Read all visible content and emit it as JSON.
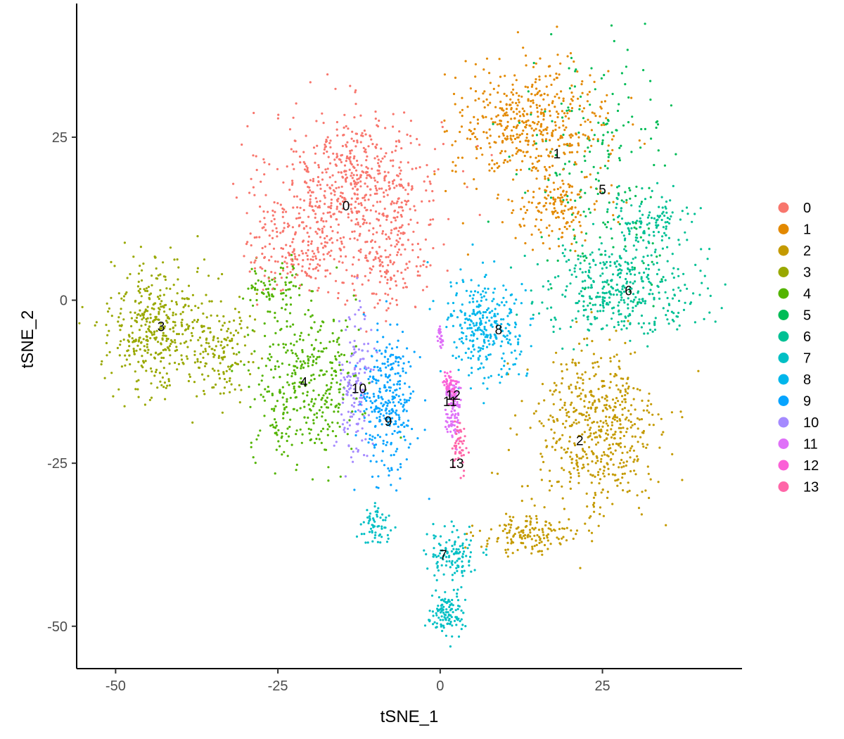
{
  "chart_data": {
    "type": "scatter",
    "xlabel": "tSNE_1",
    "ylabel": "tSNE_2",
    "xlim": [
      -56,
      46.5
    ],
    "ylim": [
      -56.5,
      45.5
    ],
    "x_ticks": [
      -50,
      -25,
      0,
      25
    ],
    "y_ticks": [
      -50,
      -25,
      0,
      25
    ],
    "grid": false,
    "legend_position": "right",
    "series": [
      {
        "name": "0",
        "color": "#F8766D",
        "blobs": [
          {
            "cx": -13,
            "cy": 18,
            "rx": 13,
            "ry": 11,
            "n": 600
          },
          {
            "cx": -22,
            "cy": 8,
            "rx": 8,
            "ry": 7,
            "n": 200
          },
          {
            "cx": -8,
            "cy": 5,
            "rx": 7,
            "ry": 7,
            "n": 150
          }
        ]
      },
      {
        "name": "1",
        "color": "#E38900",
        "blobs": [
          {
            "cx": 14,
            "cy": 27,
            "rx": 12,
            "ry": 9,
            "n": 480
          },
          {
            "cx": 18,
            "cy": 14,
            "rx": 7,
            "ry": 5,
            "n": 150
          }
        ]
      },
      {
        "name": "2",
        "color": "#C49A00",
        "blobs": [
          {
            "cx": 24,
            "cy": -20,
            "rx": 10,
            "ry": 13,
            "n": 550
          },
          {
            "cx": 14,
            "cy": -36,
            "rx": 8,
            "ry": 3,
            "n": 150
          }
        ]
      },
      {
        "name": "3",
        "color": "#99A800",
        "blobs": [
          {
            "cx": -44,
            "cy": -4,
            "rx": 7,
            "ry": 10,
            "n": 400
          },
          {
            "cx": -34,
            "cy": -7,
            "rx": 5,
            "ry": 8,
            "n": 150
          }
        ]
      },
      {
        "name": "4",
        "color": "#53B400",
        "blobs": [
          {
            "cx": -21,
            "cy": -13,
            "rx": 8,
            "ry": 12,
            "n": 380
          },
          {
            "cx": -25,
            "cy": 2,
            "rx": 5,
            "ry": 4,
            "n": 80
          }
        ]
      },
      {
        "name": "5",
        "color": "#00BC56",
        "blobs": [
          {
            "cx": 25,
            "cy": 20,
            "rx": 12,
            "ry": 17,
            "n": 200
          }
        ]
      },
      {
        "name": "6",
        "color": "#00C094",
        "blobs": [
          {
            "cx": 28,
            "cy": 2,
            "rx": 12,
            "ry": 7,
            "n": 400
          },
          {
            "cx": 32,
            "cy": 12,
            "rx": 7,
            "ry": 4,
            "n": 120
          }
        ]
      },
      {
        "name": "7",
        "color": "#00BFC4",
        "blobs": [
          {
            "cx": 2,
            "cy": -39,
            "rx": 4,
            "ry": 4,
            "n": 120
          },
          {
            "cx": 1,
            "cy": -48,
            "rx": 3,
            "ry": 3,
            "n": 120
          },
          {
            "cx": -10,
            "cy": -35,
            "rx": 2,
            "ry": 3,
            "n": 60
          }
        ]
      },
      {
        "name": "8",
        "color": "#00B6EB",
        "blobs": [
          {
            "cx": 7,
            "cy": -4,
            "rx": 6,
            "ry": 8,
            "n": 300
          }
        ]
      },
      {
        "name": "9",
        "color": "#06A4FF",
        "blobs": [
          {
            "cx": -8,
            "cy": -16,
            "rx": 4,
            "ry": 11,
            "n": 300
          }
        ]
      },
      {
        "name": "10",
        "color": "#A58AFF",
        "blobs": [
          {
            "cx": -13,
            "cy": -13,
            "rx": 2.5,
            "ry": 11,
            "n": 150
          }
        ]
      },
      {
        "name": "11",
        "color": "#DF70F8",
        "blobs": [
          {
            "cx": 2,
            "cy": -17,
            "rx": 1.2,
            "ry": 5,
            "n": 100
          },
          {
            "cx": 0,
            "cy": -6,
            "rx": 0.5,
            "ry": 2,
            "n": 25
          }
        ]
      },
      {
        "name": "12",
        "color": "#FB61D7",
        "blobs": [
          {
            "cx": 1.5,
            "cy": -13,
            "rx": 1,
            "ry": 2,
            "n": 60
          }
        ]
      },
      {
        "name": "13",
        "color": "#FF66A8",
        "blobs": [
          {
            "cx": 3,
            "cy": -22,
            "rx": 1,
            "ry": 4,
            "n": 50
          }
        ]
      }
    ],
    "cluster_labels": [
      {
        "text": "0",
        "x": -14.5,
        "y": 14.5
      },
      {
        "text": "1",
        "x": 18,
        "y": 22.5
      },
      {
        "text": "2",
        "x": 21.5,
        "y": -21.5
      },
      {
        "text": "3",
        "x": -43,
        "y": -4
      },
      {
        "text": "4",
        "x": -21,
        "y": -12.5
      },
      {
        "text": "5",
        "x": 25,
        "y": 17
      },
      {
        "text": "6",
        "x": 29,
        "y": 1.5
      },
      {
        "text": "7",
        "x": 0.5,
        "y": -39
      },
      {
        "text": "8",
        "x": 9,
        "y": -4.5
      },
      {
        "text": "9",
        "x": -8,
        "y": -18.5
      },
      {
        "text": "10",
        "x": -12.5,
        "y": -13.5
      },
      {
        "text": "11",
        "x": 1.5,
        "y": -15.5
      },
      {
        "text": "12",
        "x": 2,
        "y": -14.5
      },
      {
        "text": "13",
        "x": 2.5,
        "y": -25
      }
    ]
  }
}
